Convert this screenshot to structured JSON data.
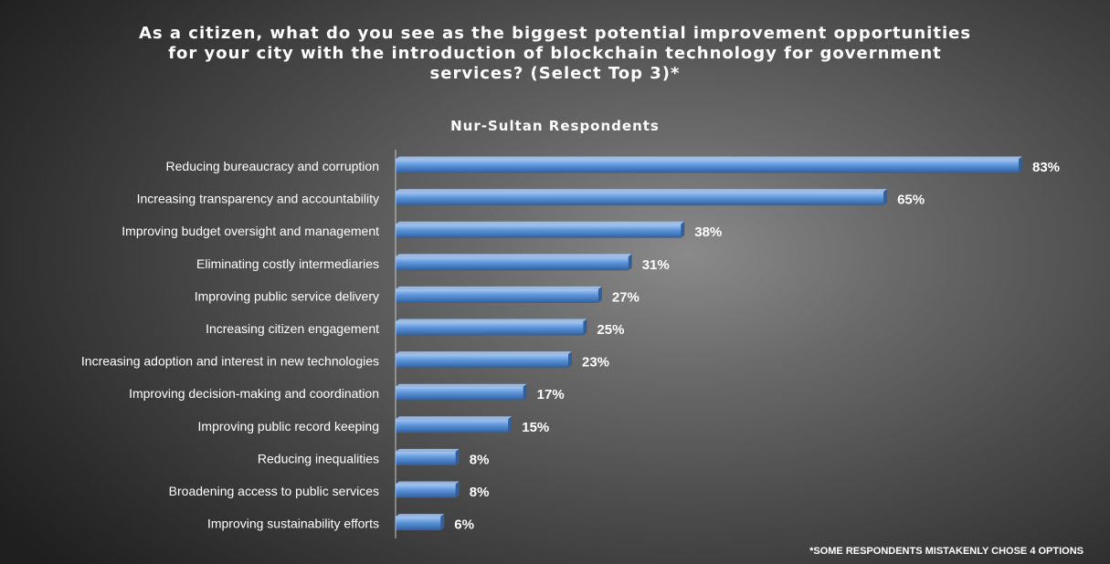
{
  "title": {
    "lines": [
      "As a citizen, what do you see as the biggest potential improvement opportunities",
      "for your city with the introduction of blockchain technology for government",
      "services? (Select Top 3)*"
    ]
  },
  "subtitle": "Nur-Sultan Respondents",
  "footnote": "*SOME RESPONDENTS MISTAKENLY CHOSE  4 OPTIONS",
  "colors": {
    "bar_light": "#a8c8f0",
    "bar_mid": "#5b93d9",
    "bar_dark": "#2e5f9e",
    "axis": "#c8c8c8",
    "text": "#ffffff"
  },
  "chart_data": {
    "type": "bar",
    "orientation": "horizontal",
    "title": "As a citizen, what do you see as the biggest potential improvement opportunities for your city with the introduction of blockchain technology for government services? (Select Top 3)*",
    "subtitle": "Nur-Sultan Respondents",
    "categories": [
      "Reducing bureaucracy and corruption",
      "Increasing transparency and accountability",
      "Improving budget oversight and management",
      "Eliminating costly intermediaries",
      "Improving public service delivery",
      "Increasing citizen engagement",
      "Increasing adoption and interest in new technologies",
      "Improving decision-making and coordination",
      "Improving public record keeping",
      "Reducing inequalities",
      "Broadening access to public services",
      "Improving sustainability efforts"
    ],
    "values": [
      83,
      65,
      38,
      31,
      27,
      25,
      23,
      17,
      15,
      8,
      8,
      6
    ],
    "data_labels": [
      "83%",
      "65%",
      "38%",
      "31%",
      "27%",
      "25%",
      "23%",
      "17%",
      "15%",
      "8%",
      "8%",
      "6%"
    ],
    "unit": "%",
    "xlim": [
      0,
      83
    ],
    "grid": false,
    "legend": "none"
  }
}
